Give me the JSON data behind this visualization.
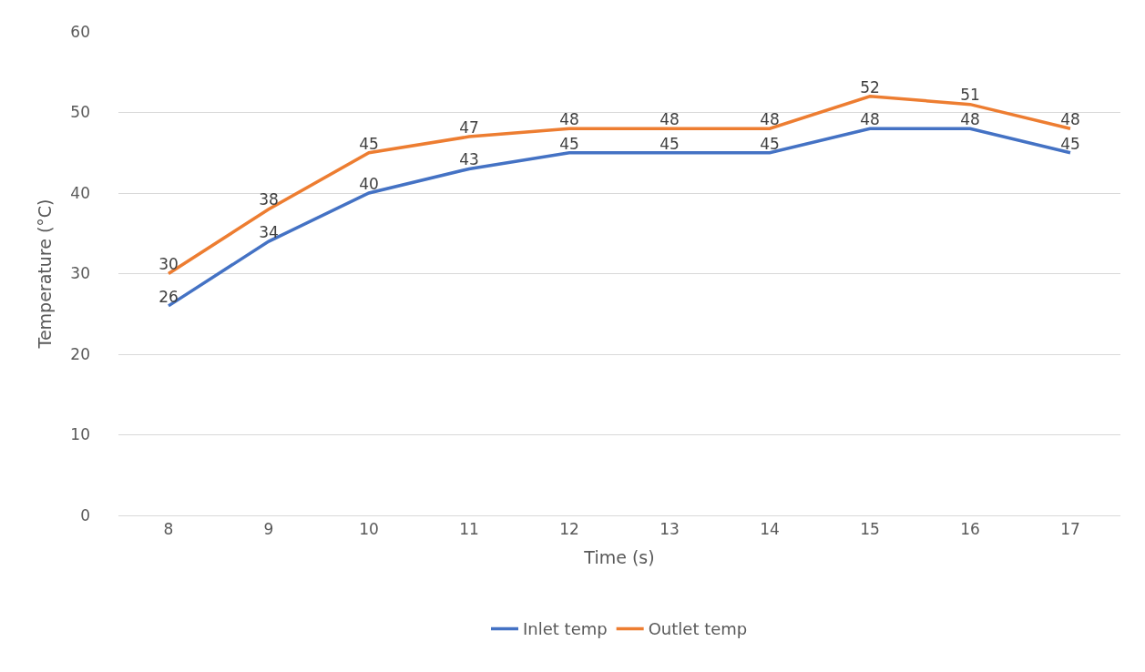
{
  "chart_data": {
    "type": "line",
    "xlabel": "Time (s)",
    "ylabel": "Temperature (°C)",
    "categories": [
      "8",
      "9",
      "10",
      "11",
      "12",
      "13",
      "14",
      "15",
      "16",
      "17"
    ],
    "series": [
      {
        "name": "Inlet temp",
        "color": "#4472c4",
        "values": [
          26,
          34,
          40,
          43,
          45,
          45,
          45,
          48,
          48,
          45
        ]
      },
      {
        "name": "Outlet temp",
        "color": "#ed7d31",
        "values": [
          30,
          38,
          45,
          47,
          48,
          48,
          48,
          52,
          51,
          48
        ]
      }
    ],
    "ylim": [
      0,
      60
    ],
    "yticks": [
      0,
      10,
      20,
      30,
      40,
      50,
      60
    ],
    "grid": "y",
    "legend": "bottom",
    "data_labels": true,
    "marker": "none",
    "line_style": "solid"
  }
}
